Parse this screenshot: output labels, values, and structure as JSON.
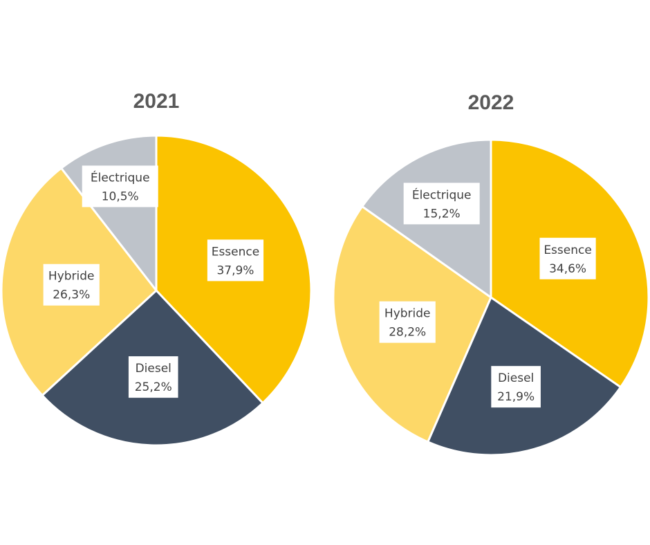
{
  "chart_data": [
    {
      "type": "pie",
      "title": "2021",
      "categories": [
        "Essence",
        "Diesel",
        "Hybride",
        "Électrique"
      ],
      "values": [
        37.9,
        25.2,
        26.3,
        10.5
      ],
      "value_labels": [
        "37,9%",
        "25,2%",
        "26,3%",
        "10,5%"
      ],
      "colors": [
        "#FBC300",
        "#404F63",
        "#FDD868",
        "#BEC3CA"
      ],
      "start_angle": "12 o'clock",
      "direction": "clockwise",
      "data_labels": true,
      "legend": "none"
    },
    {
      "type": "pie",
      "title": "2022",
      "categories": [
        "Essence",
        "Diesel",
        "Hybride",
        "Électrique"
      ],
      "values": [
        34.6,
        21.9,
        28.2,
        15.2
      ],
      "value_labels": [
        "34,6%",
        "21,9%",
        "28,2%",
        "15,2%"
      ],
      "colors": [
        "#FBC300",
        "#404F63",
        "#FDD868",
        "#BEC3CA"
      ],
      "start_angle": "12 o'clock",
      "direction": "clockwise",
      "data_labels": true,
      "legend": "none"
    }
  ]
}
